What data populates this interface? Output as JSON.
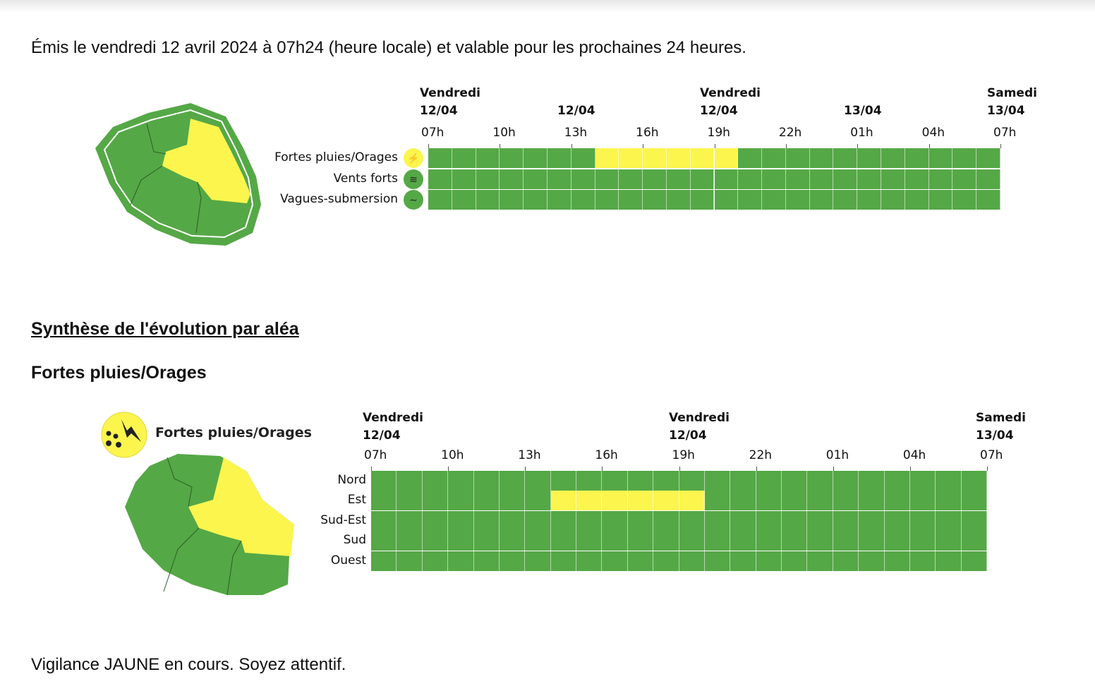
{
  "intro": "Émis le vendredi 12 avril 2024 à 07h24 (heure locale) et valable pour les prochaines 24 heures.",
  "colors": {
    "vert": "#55a846",
    "jaune": "#fbf54e"
  },
  "overview": {
    "date_headers": [
      {
        "line1": "Vendredi",
        "line2": "12/04"
      },
      {
        "line1": "",
        "line2": "12/04"
      },
      {
        "line1": "Vendredi",
        "line2": "12/04"
      },
      {
        "line1": "",
        "line2": "13/04"
      },
      {
        "line1": "Samedi",
        "line2": "13/04"
      }
    ],
    "ticks": [
      "07h",
      "10h",
      "13h",
      "16h",
      "19h",
      "22h",
      "01h",
      "04h",
      "07h"
    ],
    "rows": [
      {
        "label": "Fortes pluies/Orages",
        "icon": "rain-storm-icon",
        "level": "jaune",
        "segments": [
          {
            "from": "14h",
            "to": "20h",
            "level": "jaune"
          }
        ]
      },
      {
        "label": "Vents forts",
        "icon": "wind-icon",
        "level": "vert",
        "segments": []
      },
      {
        "label": "Vagues-submersion",
        "icon": "waves-icon",
        "level": "vert",
        "segments": []
      }
    ]
  },
  "synthese_title": "Synthèse de l'évolution par aléa",
  "hazard": {
    "title": "Fortes pluies/Orages",
    "legend_label": "Fortes pluies/Orages",
    "date_headers": [
      {
        "line1": "Vendredi",
        "line2": "12/04"
      },
      {
        "line1": "Vendredi",
        "line2": "12/04"
      },
      {
        "line1": "Samedi",
        "line2": "13/04"
      }
    ],
    "ticks": [
      "07h",
      "10h",
      "13h",
      "16h",
      "19h",
      "22h",
      "01h",
      "04h",
      "07h"
    ],
    "rows": [
      {
        "label": "Nord",
        "segments": []
      },
      {
        "label": "Est",
        "segments": [
          {
            "from": "14h",
            "to": "20h",
            "level": "jaune"
          }
        ]
      },
      {
        "label": "Sud-Est",
        "segments": []
      },
      {
        "label": "Sud",
        "segments": []
      },
      {
        "label": "Ouest",
        "segments": []
      }
    ]
  },
  "footer": "Vigilance JAUNE en cours. Soyez attentif."
}
